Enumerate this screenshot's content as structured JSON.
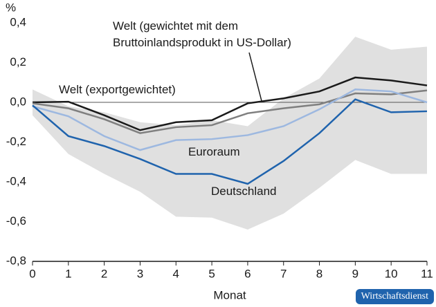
{
  "chart_data": {
    "type": "line",
    "y_unit_label": "%",
    "x_label": "Monat",
    "source": "Wirtschaftsdienst",
    "x": [
      0,
      1,
      2,
      3,
      4,
      5,
      6,
      7,
      8,
      9,
      10,
      11
    ],
    "xlim": [
      0,
      11
    ],
    "xticks": [
      0,
      1,
      2,
      3,
      4,
      5,
      6,
      7,
      8,
      9,
      10,
      11
    ],
    "ylim": [
      -0.8,
      0.4
    ],
    "yticks": [
      {
        "value": -0.8,
        "label": "-0,8"
      },
      {
        "value": -0.6,
        "label": "-0,6"
      },
      {
        "value": -0.4,
        "label": "-0,4"
      },
      {
        "value": -0.2,
        "label": "-0,2"
      },
      {
        "value": 0,
        "label": "0,0"
      },
      {
        "value": 0.2,
        "label": "0,2"
      },
      {
        "value": 0.4,
        "label": "0,4"
      }
    ],
    "band": {
      "color": "#e0e0e0",
      "upper": [
        0.065,
        -0.02,
        -0.05,
        -0.1,
        -0.115,
        -0.09,
        -0.12,
        0.02,
        0.12,
        0.33,
        0.265,
        0.28
      ],
      "lower": [
        -0.065,
        -0.26,
        -0.36,
        -0.45,
        -0.575,
        -0.58,
        -0.64,
        -0.56,
        -0.43,
        -0.29,
        -0.36,
        -0.36
      ]
    },
    "series": [
      {
        "name": "Welt (exportgewichtet)",
        "color": "#1a1a1a",
        "values": [
          0.0,
          0.003,
          -0.065,
          -0.14,
          -0.1,
          -0.09,
          -0.005,
          0.02,
          0.055,
          0.125,
          0.11,
          0.085
        ]
      },
      {
        "name": "Welt (gewichtet mit dem\nBruttoinlandsprodukt in US-Dollar)",
        "color": "#7f7f7f",
        "values": [
          -0.005,
          -0.03,
          -0.085,
          -0.155,
          -0.125,
          -0.115,
          -0.055,
          -0.03,
          -0.01,
          0.045,
          0.04,
          0.06
        ]
      },
      {
        "name": "Euroraum",
        "color": "#9db8e0",
        "values": [
          -0.02,
          -0.07,
          -0.17,
          -0.24,
          -0.19,
          -0.185,
          -0.165,
          -0.12,
          -0.035,
          0.065,
          0.055,
          0.0
        ]
      },
      {
        "name": "Deutschland",
        "color": "#1f63ad",
        "values": [
          -0.015,
          -0.17,
          -0.22,
          -0.285,
          -0.36,
          -0.36,
          -0.41,
          -0.295,
          -0.155,
          0.015,
          -0.05,
          -0.045
        ]
      }
    ]
  }
}
